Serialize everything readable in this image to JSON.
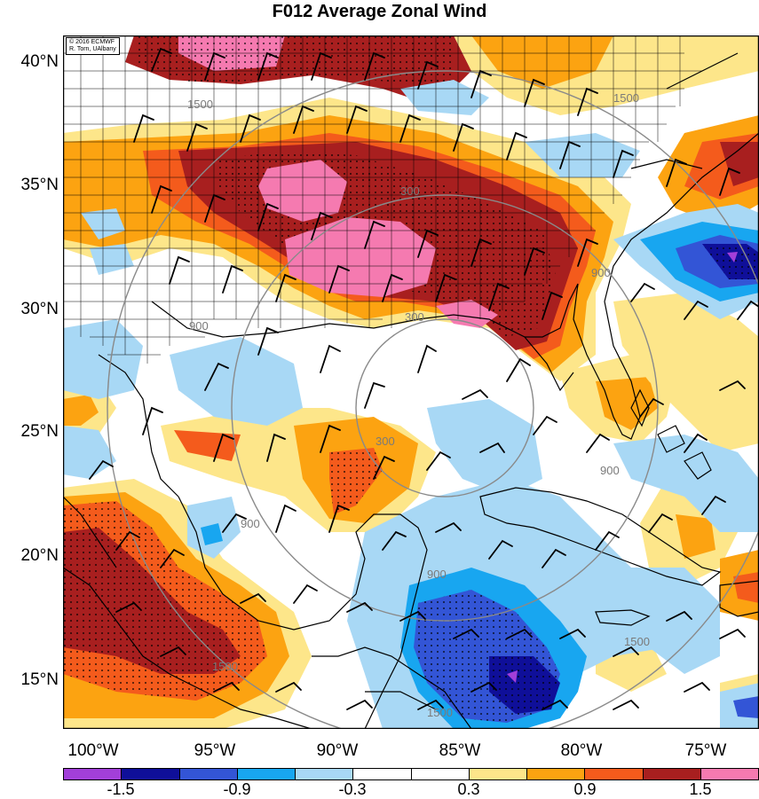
{
  "title": "F012 Average Zonal Wind",
  "credit": {
    "line1": "© 2016 ECMWF",
    "line2": "R. Torn, UAlbany"
  },
  "latitude_labels": [
    "40°N",
    "35°N",
    "30°N",
    "25°N",
    "20°N",
    "15°N"
  ],
  "longitude_labels": [
    "100°W",
    "95°W",
    "90°W",
    "85°W",
    "80°W",
    "75°W"
  ],
  "range_ring_labels": [
    "300",
    "300",
    "300",
    "900",
    "900",
    "900",
    "900",
    "900",
    "1500",
    "1500",
    "1500",
    "1500",
    "1500"
  ],
  "colorbar": {
    "labels": [
      "-1.5",
      "-0.9",
      "-0.3",
      "0.3",
      "0.9",
      "1.5"
    ],
    "colors": [
      "#a23fd9",
      "#0f0f99",
      "#3355d6",
      "#18a6f0",
      "#a8d8f5",
      "#ffffff",
      "#ffffff",
      "#fde68a",
      "#fca311",
      "#f45b1c",
      "#a81f1f",
      "#f57ab0"
    ]
  },
  "fill_colors": {
    "pink": "#f57ab0",
    "darkred": "#a81f1f",
    "red": "#f45b1c",
    "orange": "#fca311",
    "yellow": "#fde68a",
    "lightblue": "#a8d8f5",
    "blue": "#18a6f0",
    "midblue": "#3355d6",
    "navy": "#0f0f99",
    "purple": "#a23fd9"
  }
}
